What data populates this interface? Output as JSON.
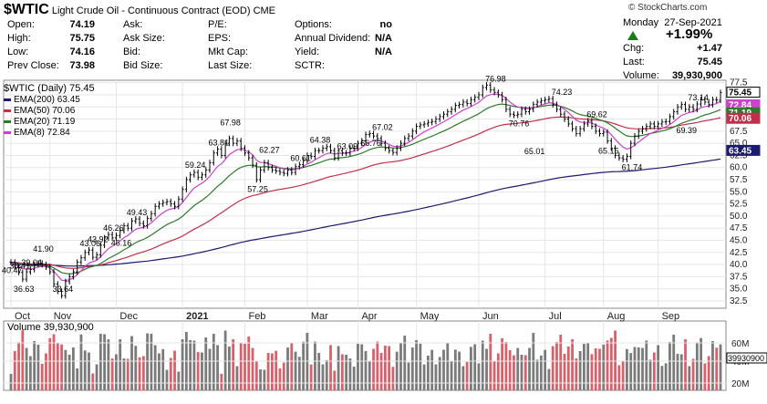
{
  "header": {
    "symbol": "$WTIC",
    "name": "Light Crude Oil - Continuous Contract (EOD)",
    "exchange": "CME",
    "brand": "© StockCharts.com",
    "day": "Monday",
    "date": "27-Sep-2021",
    "change_pct": "+1.99%",
    "up_color": "#1e7a1e"
  },
  "quote": {
    "col1": [
      {
        "label": "Open:",
        "value": "74.19"
      },
      {
        "label": "High:",
        "value": "75.75"
      },
      {
        "label": "Low:",
        "value": "74.16"
      },
      {
        "label": "Prev Close:",
        "value": "73.98"
      }
    ],
    "col2": [
      {
        "label": "Ask:",
        "value": ""
      },
      {
        "label": "Ask Size:",
        "value": ""
      },
      {
        "label": "Bid:",
        "value": ""
      },
      {
        "label": "Bid Size:",
        "value": ""
      }
    ],
    "col3": [
      {
        "label": "P/E:",
        "value": ""
      },
      {
        "label": "EPS:",
        "value": ""
      },
      {
        "label": "Mkt Cap:",
        "value": ""
      },
      {
        "label": "Last Size:",
        "value": ""
      }
    ],
    "col4": [
      {
        "label": "Options:",
        "value": "no"
      },
      {
        "label": "Annual Dividend:",
        "value": "N/A"
      },
      {
        "label": "Yield:",
        "value": "N/A"
      },
      {
        "label": "SCTR:",
        "value": ""
      }
    ],
    "right": [
      {
        "label": "Chg:",
        "value": "+1.47"
      },
      {
        "label": "Last:",
        "value": "75.45"
      },
      {
        "label": "Volume:",
        "value": "39,930,900"
      }
    ]
  },
  "legend": {
    "title": "$WTIC (Daily) 75.45",
    "items": [
      {
        "label": "EMA(200) 63.45",
        "color": "#1a1a6e"
      },
      {
        "label": "EMA(50) 70.06",
        "color": "#c0304a"
      },
      {
        "label": "EMA(20) 71.19",
        "color": "#2d7a2d"
      },
      {
        "label": "EMA(8) 72.84",
        "color": "#d040d0"
      }
    ]
  },
  "volume_label": "Volume 39,930,900",
  "chart_data": {
    "type": "line",
    "price_axis": {
      "ticks": [
        32.5,
        35.0,
        37.5,
        40.0,
        42.5,
        45.0,
        47.5,
        50.0,
        52.5,
        55.0,
        57.5,
        60.0,
        62.5,
        65.0,
        67.5,
        70.0,
        72.5,
        75.0,
        77.5
      ],
      "ylim": [
        31,
        78
      ]
    },
    "x_labels": [
      "Oct",
      "Nov",
      "Dec",
      "2021",
      "Feb",
      "Mar",
      "Apr",
      "May",
      "Jun",
      "Jul",
      "Aug",
      "Sep"
    ],
    "close": [
      40.5,
      39.5,
      38.4,
      37.0,
      38.5,
      39.0,
      40.0,
      40.3,
      40.0,
      39.5,
      38.5,
      36.0,
      34.5,
      33.6,
      36.5,
      37.5,
      38.5,
      40.5,
      41.4,
      42.5,
      43.0,
      41.5,
      42.0,
      44.0,
      45.5,
      46.2,
      45.5,
      46.0,
      47.0,
      48.0,
      47.5,
      49.0,
      49.4,
      48.5,
      48.0,
      49.5,
      50.5,
      52.0,
      52.5,
      52.8,
      53.0,
      52.5,
      52.0,
      53.5,
      55.5,
      57.5,
      58.5,
      59.0,
      58.0,
      58.5,
      59.5,
      61.0,
      63.0,
      63.8,
      62.5,
      65.0,
      66.0,
      65.0,
      65.5,
      64.0,
      63.0,
      62.0,
      60.5,
      57.5,
      59.5,
      61.0,
      60.0,
      59.5,
      59.3,
      59.0,
      58.8,
      59.5,
      59.0,
      60.2,
      60.6,
      61.5,
      62.5,
      62.3,
      63.5,
      63.5,
      64.0,
      64.3,
      63.5,
      62.0,
      63.5,
      63.0,
      63.0,
      64.0,
      64.0,
      65.0,
      65.5,
      66.8,
      67.0,
      66.5,
      66.0,
      65.0,
      64.0,
      63.5,
      63.1,
      64.0,
      65.0,
      66.0,
      66.5,
      67.5,
      68.5,
      68.8,
      69.0,
      69.3,
      69.5,
      70.0,
      70.5,
      71.0,
      71.5,
      72.0,
      72.8,
      73.0,
      73.5,
      73.2,
      74.0,
      74.5,
      75.0,
      76.5,
      77.0,
      76.0,
      75.5,
      75.0,
      74.0,
      72.0,
      71.0,
      70.8,
      71.0,
      72.0,
      71.5,
      72.0,
      73.0,
      73.5,
      73.8,
      74.0,
      74.2,
      73.0,
      72.0,
      71.0,
      70.0,
      69.0,
      68.0,
      67.0,
      68.0,
      69.0,
      69.6,
      68.5,
      67.5,
      67.0,
      67.3,
      65.5,
      64.0,
      62.5,
      62.0,
      61.7,
      62.3,
      65.0,
      66.5,
      67.5,
      68.0,
      68.5,
      69.0,
      68.5,
      69.0,
      69.4,
      69.5,
      70.5,
      71.5,
      72.5,
      73.0,
      72.0,
      72.5,
      72.0,
      73.1,
      74.0,
      73.5,
      73.0,
      74.0,
      73.9,
      75.45
    ],
    "ema8_end": 72.84,
    "ema20_end": 71.19,
    "ema50_end": 70.06,
    "ema200_end": 63.45,
    "annotations": [
      {
        "i": 0,
        "v": "40.47"
      },
      {
        "i": 2,
        "v": "38.41"
      },
      {
        "i": 3,
        "v": "36.63"
      },
      {
        "i": 5,
        "v": "39.04"
      },
      {
        "i": 8,
        "v": "41.90"
      },
      {
        "i": 13,
        "v": "33.64"
      },
      {
        "i": 20,
        "v": "43.06"
      },
      {
        "i": 22,
        "v": "43.92"
      },
      {
        "i": 26,
        "v": "46.26"
      },
      {
        "i": 28,
        "v": "46.16"
      },
      {
        "i": 32,
        "v": "49.43"
      },
      {
        "i": 47,
        "v": "59.24"
      },
      {
        "i": 53,
        "v": "63.81"
      },
      {
        "i": 56,
        "v": "67.98"
      },
      {
        "i": 63,
        "v": "57.25"
      },
      {
        "i": 66,
        "v": "62.27"
      },
      {
        "i": 74,
        "v": "60.61"
      },
      {
        "i": 79,
        "v": "64.38"
      },
      {
        "i": 86,
        "v": "63.09"
      },
      {
        "i": 92,
        "v": "66.76"
      },
      {
        "i": 95,
        "v": "67.02"
      },
      {
        "i": 124,
        "v": "76.98"
      },
      {
        "i": 130,
        "v": "70.76"
      },
      {
        "i": 134,
        "v": "65.01"
      },
      {
        "i": 141,
        "v": "74.23"
      },
      {
        "i": 150,
        "v": "69.62"
      },
      {
        "i": 153,
        "v": "65.15"
      },
      {
        "i": 159,
        "v": "61.74"
      },
      {
        "i": 173,
        "v": "69.39"
      },
      {
        "i": 176,
        "v": "73.14"
      }
    ],
    "volume_axis": {
      "ticks": [
        "60M",
        "40M",
        "20M"
      ]
    },
    "volume_last_label": "39930900"
  }
}
